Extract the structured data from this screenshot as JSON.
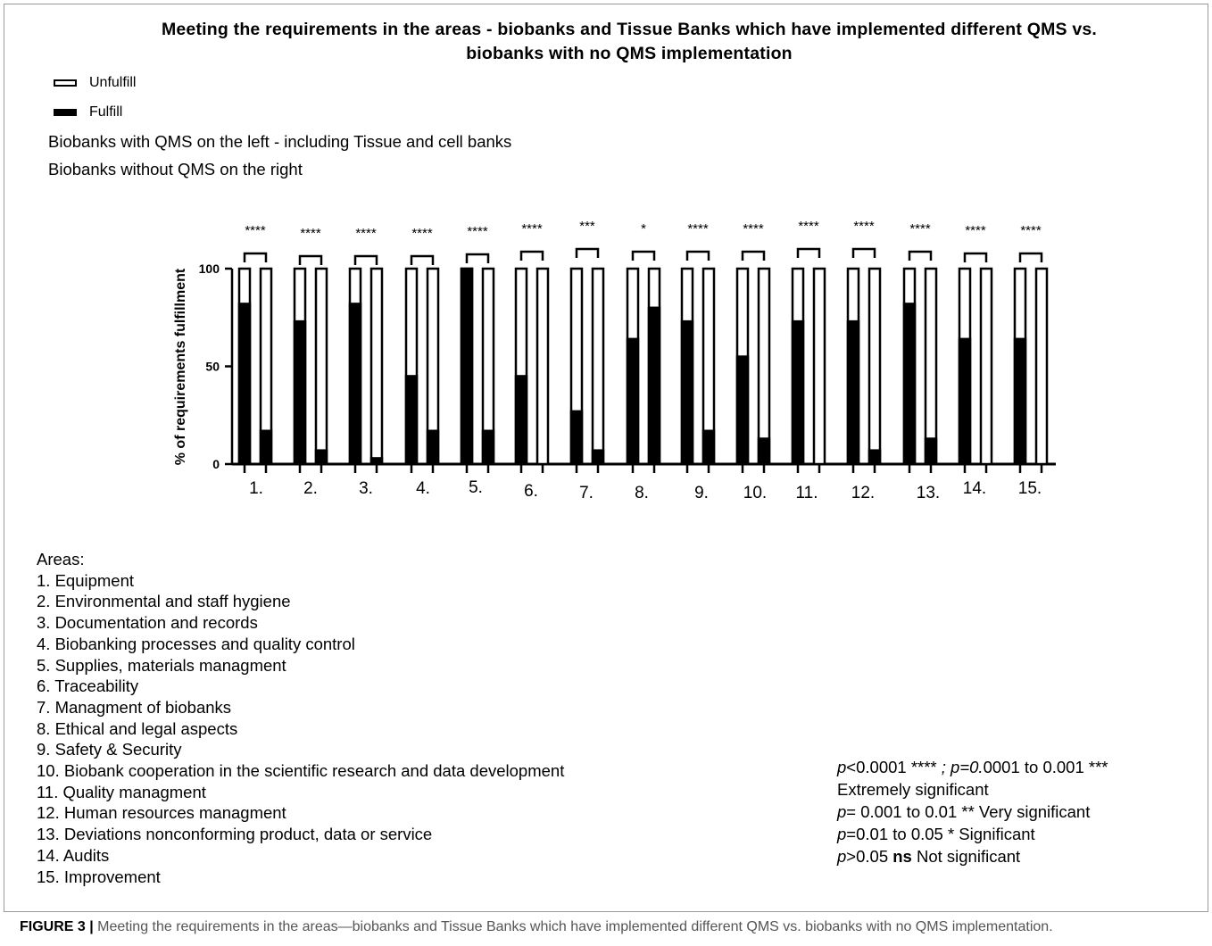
{
  "title_line1": "Meeting the requirements in the areas - biobanks and Tissue Banks which have implemented different QMS vs.",
  "title_line2": "biobanks with no QMS implementation",
  "legend": {
    "unfulfill": "Unfulfill",
    "fulfill": "Fulfill"
  },
  "notes": {
    "left": "Biobanks with QMS on the left - including Tissue and cell banks",
    "right": "Biobanks without QMS on the right"
  },
  "chart_data": {
    "type": "bar",
    "stacked": true,
    "ylabel": "% of requirements fulfillment",
    "ylim": [
      0,
      100
    ],
    "yticks": [
      0,
      50,
      100
    ],
    "categories": [
      "1.",
      "2.",
      "3.",
      "4.",
      "5.",
      "6.",
      "7.",
      "8.",
      "9.",
      "10.",
      "11.",
      "12.",
      "13.",
      "14.",
      "15."
    ],
    "series": [
      {
        "name": "Fulfill",
        "color": "#000000",
        "with_qms": [
          82,
          73,
          82,
          45,
          100,
          45,
          27,
          64,
          73,
          55,
          73,
          73,
          82,
          64,
          64
        ],
        "without_qms": [
          17,
          7,
          3,
          17,
          17,
          0,
          7,
          80,
          17,
          13,
          0,
          7,
          13,
          0,
          0
        ]
      },
      {
        "name": "Unfulfill",
        "color": "#ffffff",
        "with_qms": [
          18,
          27,
          18,
          55,
          0,
          55,
          73,
          36,
          27,
          45,
          27,
          27,
          18,
          36,
          36
        ],
        "without_qms": [
          83,
          93,
          97,
          83,
          83,
          100,
          93,
          20,
          83,
          87,
          100,
          93,
          87,
          100,
          100
        ]
      }
    ],
    "significance": [
      "****",
      "****",
      "****",
      "****",
      "****",
      "****",
      "***",
      "*",
      "****",
      "****",
      "****",
      "****",
      "****",
      "****",
      "****"
    ]
  },
  "areas": {
    "heading": "Areas:",
    "items": [
      "1. Equipment",
      "2. Environmental and staff hygiene",
      "3. Documentation and records",
      "4. Biobanking processes and quality control",
      "5. Supplies, materials  managment",
      "6. Traceability",
      "7. Managment of biobanks",
      "8. Ethical and legal aspects",
      "9. Safety & Security",
      "10. Biobank cooperation in the scientific research and data development",
      "11. Quality managment",
      "12. Human resources managment",
      "13. Deviations nonconforming product, data or service",
      "14. Audits",
      "15. Improvement"
    ]
  },
  "pvalues": {
    "l1_p": "p",
    "l1_a": "<0.0001 **** ",
    "l1_semi": "; p=0.",
    "l1_b": "0001 to 0.001 ***",
    "l2": "Extremely significant",
    "l3_p": "p",
    "l3": "= 0.001 to 0.01 ** Very significant",
    "l4_p": "p",
    "l4": "=0.01 to 0.05 * Significant",
    "l5_p": "p",
    "l5_a": ">0.05 ",
    "l5_ns": "ns",
    "l5_b": " Not significant"
  },
  "caption": {
    "label": "FIGURE 3 |",
    "text": " Meeting the requirements in the areas—biobanks and Tissue Banks which have implemented different QMS vs. biobanks with no QMS implementation."
  }
}
